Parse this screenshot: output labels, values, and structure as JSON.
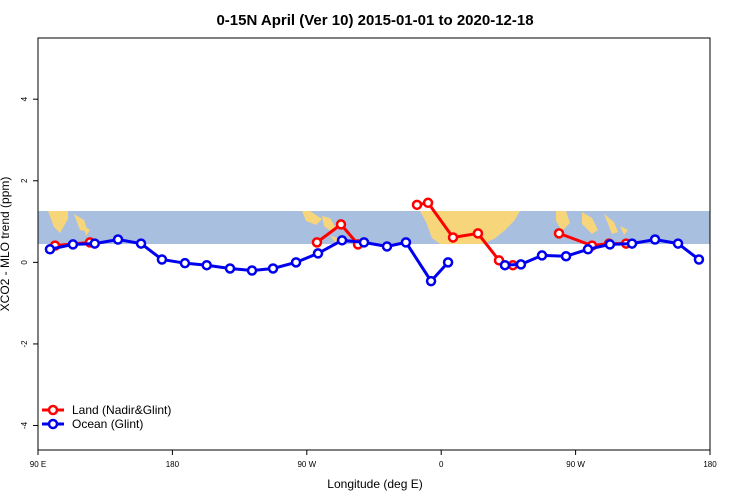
{
  "chart_data": {
    "type": "line",
    "title": "0-15N April (Ver 10)   2015-01-01 to 2020-12-18",
    "x_label": "Longitude (deg E)",
    "y_label": "XCO2 - MLO trend (ppm)",
    "xlim": [
      90,
      540
    ],
    "ylim": [
      -4.6,
      5.5
    ],
    "xticks": [
      {
        "value": 90,
        "label": "90 E"
      },
      {
        "value": 180,
        "label": "180"
      },
      {
        "value": 270,
        "label": "90 W"
      },
      {
        "value": 360,
        "label": "0"
      },
      {
        "value": 450,
        "label": "90 W"
      },
      {
        "value": 540,
        "label": "180"
      }
    ],
    "yticks": [
      -4,
      -2,
      0,
      2,
      4
    ],
    "legend": "bottomleft",
    "series": [
      {
        "name": "Land (Nadir&Glint)",
        "color": "#ff0000",
        "x": [
          101.4,
          124.8,
          null,
          276.8,
          292.9,
          304.3,
          null,
          343.8,
          351.2,
          367.9,
          384.6,
          398.7,
          408,
          null,
          438.9,
          461,
          472.4,
          483.8
        ],
        "values": [
          0.41,
          0.49,
          null,
          0.49,
          0.93,
          0.44,
          null,
          1.41,
          1.46,
          0.61,
          0.71,
          0.05,
          -0.07,
          null,
          0.71,
          0.41,
          0.46,
          0.46
        ]
      },
      {
        "name": "Ocean (Glint)",
        "color": "#0000ee",
        "x": [
          98,
          113.4,
          128,
          143.6,
          159,
          173,
          188.4,
          203,
          218.6,
          233.3,
          247.4,
          262.8,
          277.5,
          293.6,
          308.3,
          323.7,
          336.4,
          353.2,
          364.6,
          null,
          402.7,
          413.4,
          427.5,
          443.6,
          458.3,
          473,
          487.8,
          503.2,
          518.6,
          532.6
        ],
        "values": [
          0.32,
          0.44,
          0.46,
          0.56,
          0.46,
          0.07,
          -0.02,
          -0.07,
          -0.15,
          -0.2,
          -0.15,
          0,
          0.22,
          0.54,
          0.49,
          0.39,
          0.49,
          -0.46,
          0,
          null,
          -0.07,
          -0.05,
          0.17,
          0.15,
          0.32,
          0.44,
          0.46,
          0.56,
          0.46,
          0.07
        ]
      }
    ]
  }
}
